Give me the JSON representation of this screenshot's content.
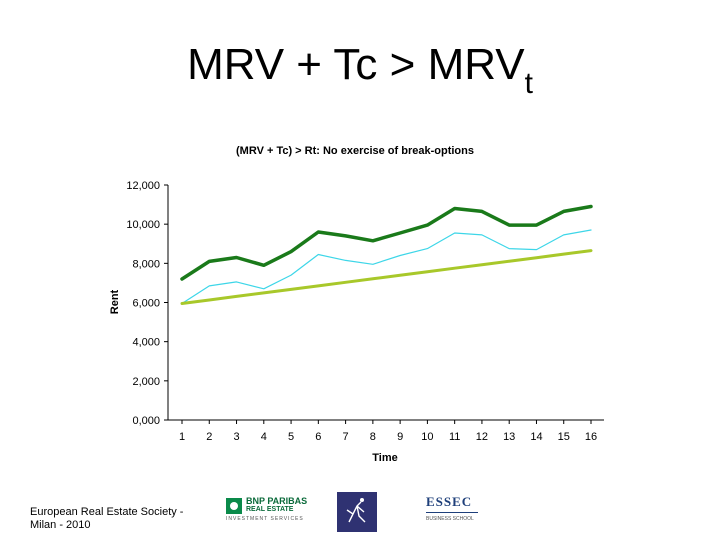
{
  "slide": {
    "title_main": "MRV + Tc > MRV",
    "title_sub": "t",
    "footer": "European Real Estate Society - Milan - 2010"
  },
  "logos": {
    "bnp_line1": "BNP PARIBAS",
    "bnp_line2": "REAL ESTATE",
    "bnp_line3": "INVESTMENT SERVICES",
    "essec_name": "ESSEC",
    "essec_sub": "BUSINESS SCHOOL"
  },
  "colors": {
    "mrv_tc": "#1a7a1a",
    "mrv": "#3dd6e8",
    "rt": "#a8c82a"
  },
  "chart_data": {
    "type": "line",
    "title": "(MRV + Tc) > Rt: No exercise of break-options",
    "xlabel": "Time",
    "ylabel": "Rent",
    "ylim": [
      0,
      12000
    ],
    "yticks": [
      "0,000",
      "2,000",
      "4,000",
      "6,000",
      "8,000",
      "10,000",
      "12,000"
    ],
    "ytick_values": [
      0,
      2000,
      4000,
      6000,
      8000,
      10000,
      12000
    ],
    "x": [
      "1",
      "2",
      "3",
      "4",
      "5",
      "6",
      "7",
      "8",
      "9",
      "10",
      "11",
      "12",
      "13",
      "14",
      "15",
      "16"
    ],
    "grid": false,
    "legend": "none",
    "series": [
      {
        "values": [
          7200,
          8100,
          8300,
          7900,
          8600,
          9600,
          9400,
          9150,
          9550,
          9950,
          10800,
          10650,
          9950,
          9950,
          10650,
          10900
        ]
      },
      {
        "values": [
          5950,
          6850,
          7050,
          6700,
          7400,
          8450,
          8150,
          7950,
          8400,
          8750,
          9550,
          9450,
          8750,
          8700,
          9450,
          9700
        ]
      },
      {
        "values": [
          5950,
          6130,
          6310,
          6490,
          6670,
          6850,
          7030,
          7210,
          7390,
          7570,
          7750,
          7930,
          8110,
          8290,
          8470,
          8650
        ]
      }
    ]
  }
}
